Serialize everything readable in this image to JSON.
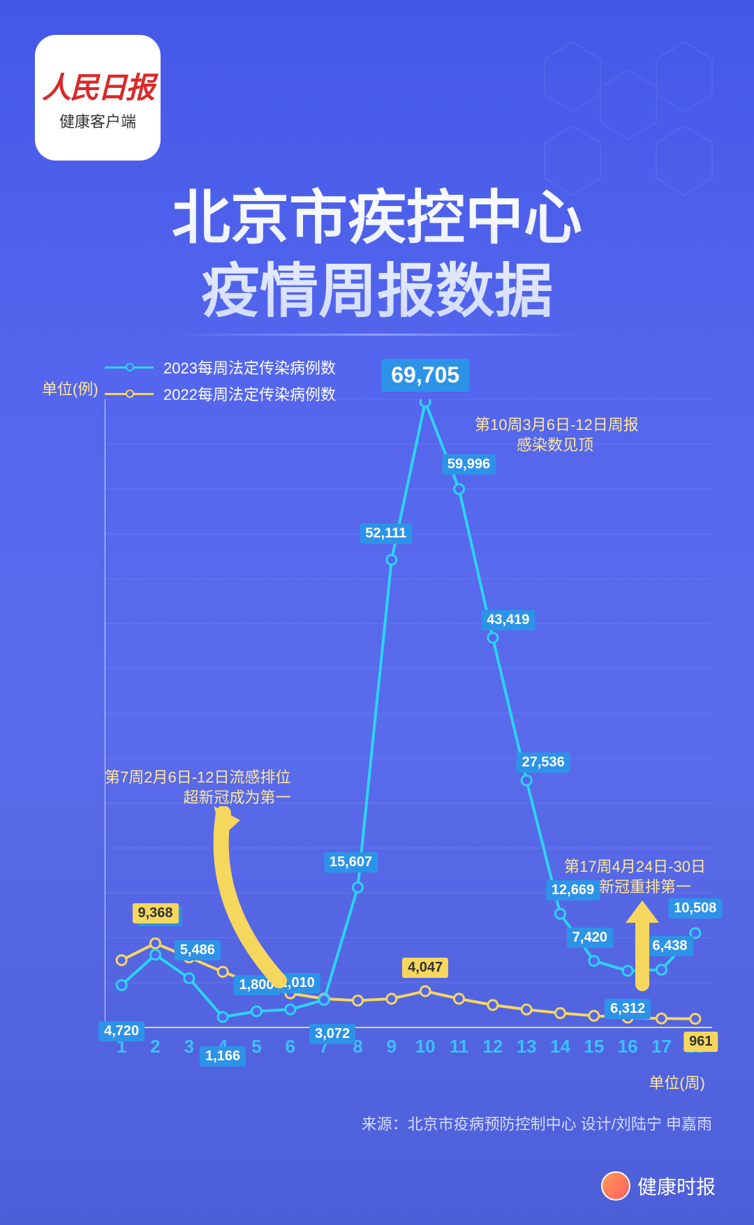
{
  "logo": {
    "main": "人民日报",
    "sub": "健康客户端"
  },
  "title_line1": "北京市疾控中心",
  "title_line2": "疫情周报数据",
  "legend": {
    "series_2023": {
      "label": "2023每周法定传染病例数",
      "color": "#2bd4f5"
    },
    "series_2022": {
      "label": "2022每周法定传染病例数",
      "color": "#f5d75e"
    }
  },
  "chart": {
    "type": "line",
    "background_color": "transparent",
    "y_unit": "单位(例)",
    "x_unit": "单位(周)",
    "y_axis": {
      "min": 0,
      "max": 70000,
      "tick_step": 5000,
      "label_color": "#e8eeff",
      "label_fontsize": 20,
      "grid_color": "#7a88f0"
    },
    "x_axis": {
      "ticks": [
        1,
        2,
        3,
        4,
        5,
        6,
        7,
        8,
        9,
        10,
        11,
        12,
        13,
        14,
        15,
        16,
        17,
        18
      ],
      "label_color": "#3dc0ff",
      "label_fontsize": 26,
      "label_weight": "bold"
    },
    "series_2023": {
      "color": "#2bd4f5",
      "line_width": 4,
      "marker_fill": "#5466ed",
      "marker_stroke": "#2bd4f5",
      "marker_radius": 7,
      "values": [
        4720,
        8112,
        5486,
        1166,
        1800,
        2010,
        3072,
        15607,
        52111,
        69705,
        59996,
        43419,
        27536,
        12669,
        7420,
        6312,
        6438,
        10508
      ],
      "labels": [
        "4,720",
        "8,112",
        "5,486",
        "1,166",
        "1,800",
        "2,010",
        "3,072",
        "15,607",
        "52,111",
        "69,705",
        "59,996",
        "43,419",
        "27,536",
        "12,669",
        "7,420",
        "6,312",
        "6,438",
        "10,508"
      ],
      "label_bg": "#2d93e8",
      "peak_index": 9
    },
    "series_2022": {
      "color": "#f5d75e",
      "line_width": 4,
      "marker_fill": "#5466ed",
      "marker_stroke": "#f5d75e",
      "marker_radius": 7,
      "values": [
        7500,
        9368,
        7800,
        6200,
        4800,
        3800,
        3200,
        3000,
        3200,
        4047,
        3200,
        2500,
        2000,
        1600,
        1300,
        1100,
        1000,
        961
      ],
      "highlight_labels": [
        {
          "x": 2,
          "text": "9,368"
        },
        {
          "x": 10,
          "text": "4,047"
        },
        {
          "x": 18,
          "text": "961"
        }
      ],
      "label_bg": "#f5d75e"
    }
  },
  "annotations": {
    "ann1": {
      "line1": "第10周3月6日-12日周报",
      "line2": "感染数见顶"
    },
    "ann2": {
      "line1": "第7周2月6日-12日流感排位",
      "line2": "超新冠成为第一"
    },
    "ann3": {
      "line1": "第17周4月24日-30日",
      "line2": "新冠重排第一"
    }
  },
  "footer": {
    "source": "来源：北京市疫病预防控制中心   设计/刘陆宁 申嘉雨",
    "brand": "健康时报"
  }
}
